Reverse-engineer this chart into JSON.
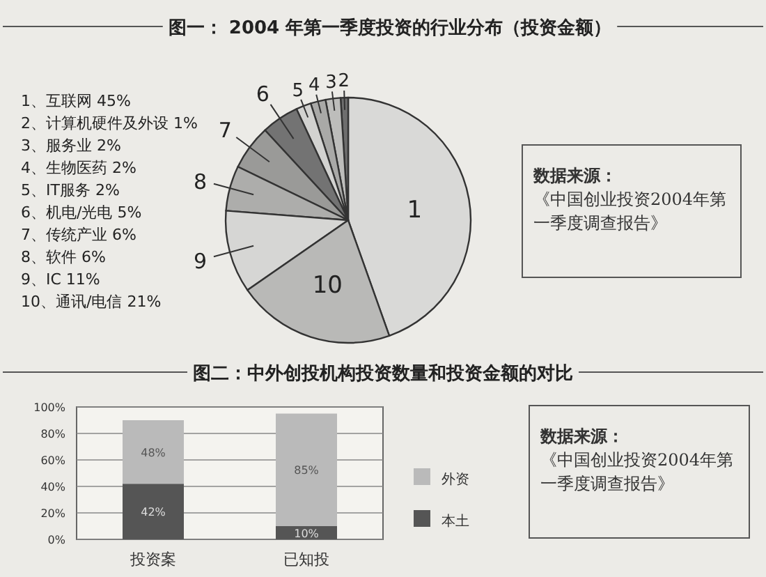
{
  "chart_data": [
    {
      "type": "pie",
      "title": "图一： 2004 年第一季度投资的行业分布（投资金额）",
      "categories": [
        "1",
        "2",
        "3",
        "4",
        "5",
        "6",
        "7",
        "8",
        "9",
        "10"
      ],
      "values": [
        45,
        1,
        2,
        2,
        2,
        5,
        6,
        6,
        11,
        21
      ],
      "colors": [
        "#d9d9d7",
        "#6e6e6e",
        "#bdbdbb",
        "#a9a9a7",
        "#d2d2d0",
        "#737373",
        "#9a9a98",
        "#adadab",
        "#d6d6d4",
        "#b9b9b7"
      ],
      "annotations": [
        "1、互联网 45%",
        "2、计算机硬件及外设 1%",
        "3、服务业 2%",
        "4、生物医药 2%",
        "5、IT服务 2%",
        "6、机电/光电 5%",
        "7、传统产业 6%",
        "8、软件 6%",
        "9、IC 11%",
        "10、通讯/电信 21%",
        "数据来源：",
        "《中国创业投资2004年第一季度调查报告》"
      ]
    },
    {
      "type": "bar",
      "title": "图二：中外创投机构投资数量和投资金额的对比",
      "stacked": true,
      "categories": [
        "投资案",
        "已知投"
      ],
      "series": [
        {
          "name": "本土",
          "color": "#555555",
          "values": [
            42,
            10
          ],
          "value_labels": [
            "42%",
            "10%"
          ]
        },
        {
          "name": "外资",
          "color": "#bababa",
          "values": [
            48,
            85
          ],
          "value_labels": [
            "48%",
            "85%"
          ]
        }
      ],
      "ylim": [
        0,
        100
      ],
      "yticks": [
        {
          "value": 0,
          "label": "0%"
        },
        {
          "value": 20,
          "label": "20%"
        },
        {
          "value": 40,
          "label": "40%"
        },
        {
          "value": 60,
          "label": "60%"
        },
        {
          "value": 80,
          "label": "80%"
        },
        {
          "value": 100,
          "label": "100%"
        }
      ],
      "grid": "y",
      "legend": "right",
      "annotations": [
        "数据来源：",
        "《中国创业投资2004年第一季度调查报告》"
      ]
    }
  ]
}
